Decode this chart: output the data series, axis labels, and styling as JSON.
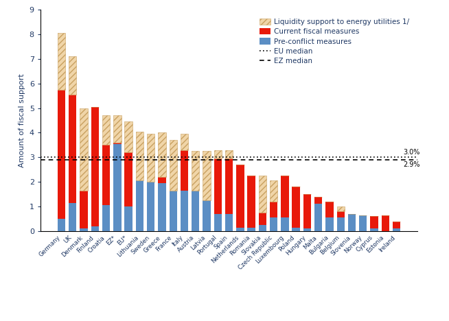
{
  "countries": [
    "Germany",
    "UK",
    "Denmark",
    "Finland",
    "Croatia",
    "EZ*",
    "EU*",
    "Lithuania",
    "Sweden",
    "Greece",
    "France",
    "Italy",
    "Austria",
    "Latvia",
    "Portugal",
    "Spain",
    "Netherlands",
    "Romania",
    "Slovakia",
    "Czech Republic",
    "Luxembourg",
    "Poland",
    "Hungary",
    "Malta",
    "Bulgaria",
    "Belgium",
    "Slovenia",
    "Norway",
    "Cyprus",
    "Estonia",
    "Ireland"
  ],
  "pre_conflict": [
    0.5,
    1.15,
    0.1,
    0.2,
    1.05,
    3.55,
    1.0,
    2.05,
    2.0,
    1.95,
    1.65,
    1.65,
    1.65,
    1.25,
    0.7,
    0.7,
    0.15,
    0.15,
    0.25,
    0.55,
    0.55,
    0.15,
    0.1,
    1.1,
    0.55,
    0.55,
    0.7,
    0.65,
    0.1,
    0.0,
    0.1
  ],
  "current_fiscal": [
    5.25,
    4.4,
    1.55,
    4.85,
    2.45,
    0.05,
    2.2,
    0.0,
    0.0,
    0.25,
    0.0,
    1.65,
    0.0,
    0.0,
    2.25,
    2.25,
    2.55,
    2.1,
    0.5,
    0.65,
    1.7,
    1.65,
    1.4,
    0.3,
    0.65,
    0.25,
    0.0,
    0.0,
    0.5,
    0.65,
    0.3
  ],
  "liquidity": [
    2.3,
    1.55,
    3.35,
    0.0,
    1.2,
    1.1,
    1.25,
    2.0,
    1.95,
    1.8,
    2.05,
    0.65,
    1.6,
    2.0,
    0.35,
    0.35,
    0.0,
    0.0,
    1.5,
    0.85,
    0.0,
    0.0,
    0.0,
    0.0,
    0.0,
    0.2,
    0.0,
    0.0,
    0.0,
    0.0,
    0.0
  ],
  "eu_median": 3.0,
  "ez_median": 2.9,
  "bar_color_pre": "#5b8ec4",
  "bar_color_current": "#e8190a",
  "bar_color_liquidity": "#f0d5a8",
  "ylabel": "Amount of fiscal support",
  "ylim": [
    0,
    9
  ],
  "yticks": [
    0,
    1,
    2,
    3,
    4,
    5,
    6,
    7,
    8,
    9
  ],
  "ylabel_color": "#1f3864",
  "text_color": "#1f3864"
}
